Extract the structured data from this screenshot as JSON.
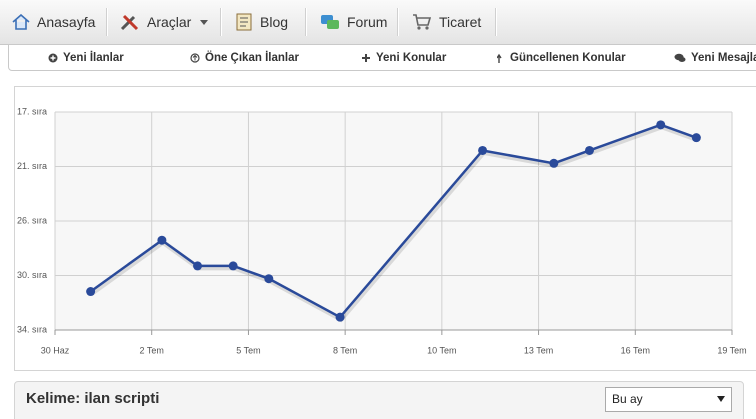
{
  "nav": {
    "items": [
      "Anasayfa",
      "Araçlar",
      "Blog",
      "Forum",
      "Ticaret"
    ]
  },
  "subnav": {
    "items": [
      "Yeni İlanlar",
      "Öne Çıkan İlanlar",
      "Yeni Konular",
      "Güncellenen Konular",
      "Yeni Mesajla"
    ]
  },
  "chart_data": {
    "type": "line",
    "x": [
      1,
      3,
      4,
      5,
      6,
      8,
      12,
      14,
      15,
      17,
      18
    ],
    "series": [
      {
        "name": "ilan scripti",
        "color": "#2a4a9a",
        "values": [
          31,
          27,
          29,
          29,
          30,
          33,
          20,
          21,
          20,
          18,
          19
        ]
      }
    ],
    "xlim": [
      0,
      19
    ],
    "xticks": [
      {
        "value": 0,
        "label": "30 Haz"
      },
      {
        "value": 2.714,
        "label": "2 Tem"
      },
      {
        "value": 5.429,
        "label": "5 Tem"
      },
      {
        "value": 8.143,
        "label": "8 Tem"
      },
      {
        "value": 10.857,
        "label": "10 Tem"
      },
      {
        "value": 13.571,
        "label": "13 Tem"
      },
      {
        "value": 16.286,
        "label": "16 Tem"
      },
      {
        "value": 19,
        "label": "19 Tem"
      }
    ],
    "ylim": [
      34,
      17
    ],
    "yticks": [
      {
        "value": 17,
        "label": "17. sıra"
      },
      {
        "value": 21.25,
        "label": "21. sıra"
      },
      {
        "value": 25.5,
        "label": "26. sıra"
      },
      {
        "value": 29.75,
        "label": "30. sıra"
      },
      {
        "value": 34,
        "label": "34. sıra"
      }
    ],
    "grid": true
  },
  "panel": {
    "title": "Kelime: ilan scripti",
    "select": "Bu ay"
  }
}
